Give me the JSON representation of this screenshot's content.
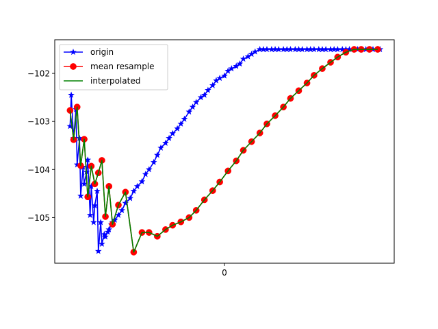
{
  "chart_data": {
    "type": "line",
    "title": "",
    "xlabel": "",
    "ylabel": "",
    "xlim": [
      -1.44,
      1.44
    ],
    "ylim": [
      -105.95,
      -101.3
    ],
    "x_ticks": [
      {
        "value": 0,
        "label": "0"
      }
    ],
    "y_ticks": [
      {
        "value": -102,
        "label": "−102"
      },
      {
        "value": -103,
        "label": "−103"
      },
      {
        "value": -104,
        "label": "−104"
      },
      {
        "value": -105,
        "label": "−105"
      }
    ],
    "grid": false,
    "legend": "upper-left",
    "series": [
      {
        "name": "origin",
        "color": "#0000ff",
        "marker": "star",
        "x": [
          -1.31,
          -1.3,
          -1.28,
          -1.26,
          -1.25,
          -1.23,
          -1.22,
          -1.2,
          -1.19,
          -1.17,
          -1.16,
          -1.14,
          -1.13,
          -1.11,
          -1.1,
          -1.08,
          -1.07,
          -1.05,
          -1.04,
          -1.02,
          -1.01,
          -0.99,
          -0.98,
          -0.96,
          -0.95,
          -0.93,
          -0.9,
          -0.87,
          -0.84,
          -0.8,
          -0.77,
          -0.74,
          -0.7,
          -0.67,
          -0.64,
          -0.6,
          -0.57,
          -0.54,
          -0.5,
          -0.47,
          -0.44,
          -0.4,
          -0.37,
          -0.34,
          -0.3,
          -0.27,
          -0.24,
          -0.2,
          -0.17,
          -0.14,
          -0.1,
          -0.07,
          -0.04,
          0.0,
          0.03,
          0.06,
          0.1,
          0.13,
          0.16,
          0.2,
          0.23,
          0.26,
          0.3,
          0.33,
          0.36,
          0.4,
          0.43,
          0.46,
          0.5,
          0.53,
          0.56,
          0.6,
          0.63,
          0.66,
          0.7,
          0.73,
          0.76,
          0.8,
          0.83,
          0.86,
          0.9,
          0.93,
          0.96,
          1.0,
          1.03,
          1.06,
          1.1,
          1.13,
          1.16,
          1.2,
          1.23,
          1.26,
          1.3,
          1.32
        ],
        "y": [
          -103.1,
          -102.45,
          -103.35,
          -102.75,
          -103.9,
          -103.35,
          -104.55,
          -103.95,
          -104.3,
          -104.05,
          -103.8,
          -104.95,
          -104.35,
          -105.1,
          -104.75,
          -104.45,
          -105.7,
          -105.1,
          -105.55,
          -105.35,
          -105.4,
          -105.3,
          -105.25,
          -105.15,
          -105.1,
          -105.05,
          -104.95,
          -104.85,
          -104.7,
          -104.6,
          -104.45,
          -104.35,
          -104.25,
          -104.1,
          -104.0,
          -103.85,
          -103.7,
          -103.55,
          -103.45,
          -103.35,
          -103.25,
          -103.15,
          -103.05,
          -102.95,
          -102.8,
          -102.7,
          -102.6,
          -102.5,
          -102.45,
          -102.35,
          -102.25,
          -102.15,
          -102.1,
          -102.05,
          -101.95,
          -101.9,
          -101.85,
          -101.8,
          -101.7,
          -101.65,
          -101.6,
          -101.55,
          -101.5,
          -101.5,
          -101.5,
          -101.5,
          -101.5,
          -101.5,
          -101.5,
          -101.5,
          -101.5,
          -101.5,
          -101.5,
          -101.5,
          -101.5,
          -101.5,
          -101.5,
          -101.5,
          -101.5,
          -101.5,
          -101.5,
          -101.5,
          -101.5,
          -101.5,
          -101.5,
          -101.5,
          -101.5,
          -101.5,
          -101.5,
          -101.5,
          -101.5,
          -101.5,
          -101.5,
          -101.5
        ]
      },
      {
        "name": "mean resample",
        "color": "#ff0000",
        "marker": "circle",
        "x": [
          -1.31,
          -1.28,
          -1.25,
          -1.22,
          -1.19,
          -1.16,
          -1.13,
          -1.1,
          -1.07,
          -1.04,
          -1.01,
          -0.98,
          -0.95,
          -0.9,
          -0.84,
          -0.77,
          -0.7,
          -0.64,
          -0.57,
          -0.5,
          -0.44,
          -0.37,
          -0.3,
          -0.24,
          -0.17,
          -0.1,
          -0.04,
          0.03,
          0.1,
          0.16,
          0.23,
          0.3,
          0.36,
          0.43,
          0.5,
          0.56,
          0.63,
          0.7,
          0.76,
          0.83,
          0.9,
          0.96,
          1.03,
          1.1,
          1.16,
          1.23,
          1.3
        ],
        "y": [
          -102.77,
          -103.38,
          -102.7,
          -103.92,
          -103.37,
          -104.57,
          -103.93,
          -104.3,
          -104.07,
          -103.81,
          -104.98,
          -104.35,
          -105.14,
          -104.74,
          -104.47,
          -105.72,
          -105.31,
          -105.31,
          -105.39,
          -105.25,
          -105.16,
          -105.09,
          -105.0,
          -104.85,
          -104.63,
          -104.44,
          -104.26,
          -104.03,
          -103.82,
          -103.6,
          -103.42,
          -103.24,
          -103.05,
          -102.88,
          -102.7,
          -102.52,
          -102.36,
          -102.2,
          -102.04,
          -101.9,
          -101.77,
          -101.66,
          -101.56,
          -101.5,
          -101.5,
          -101.5,
          -101.5
        ]
      },
      {
        "name": "interpolated",
        "color": "#008000",
        "marker": "none",
        "x": [
          -1.31,
          -1.28,
          -1.25,
          -1.22,
          -1.19,
          -1.16,
          -1.13,
          -1.1,
          -1.07,
          -1.04,
          -1.01,
          -0.98,
          -0.95,
          -0.9,
          -0.84,
          -0.77,
          -0.7,
          -0.64,
          -0.57,
          -0.5,
          -0.44,
          -0.37,
          -0.3,
          -0.24,
          -0.17,
          -0.1,
          -0.04,
          0.03,
          0.1,
          0.16,
          0.23,
          0.3,
          0.36,
          0.43,
          0.5,
          0.56,
          0.63,
          0.7,
          0.76,
          0.83,
          0.9,
          0.96,
          1.03,
          1.1,
          1.16,
          1.23,
          1.3
        ],
        "y": [
          -102.77,
          -103.38,
          -102.7,
          -103.92,
          -103.37,
          -104.57,
          -103.93,
          -104.3,
          -104.07,
          -103.81,
          -104.98,
          -104.35,
          -105.14,
          -104.74,
          -104.47,
          -105.72,
          -105.31,
          -105.31,
          -105.39,
          -105.25,
          -105.16,
          -105.09,
          -105.0,
          -104.85,
          -104.63,
          -104.44,
          -104.26,
          -104.03,
          -103.82,
          -103.6,
          -103.42,
          -103.24,
          -103.05,
          -102.88,
          -102.7,
          -102.52,
          -102.36,
          -102.2,
          -102.04,
          -101.9,
          -101.77,
          -101.66,
          -101.56,
          -101.5,
          -101.5,
          -101.5,
          -101.5
        ]
      }
    ]
  }
}
